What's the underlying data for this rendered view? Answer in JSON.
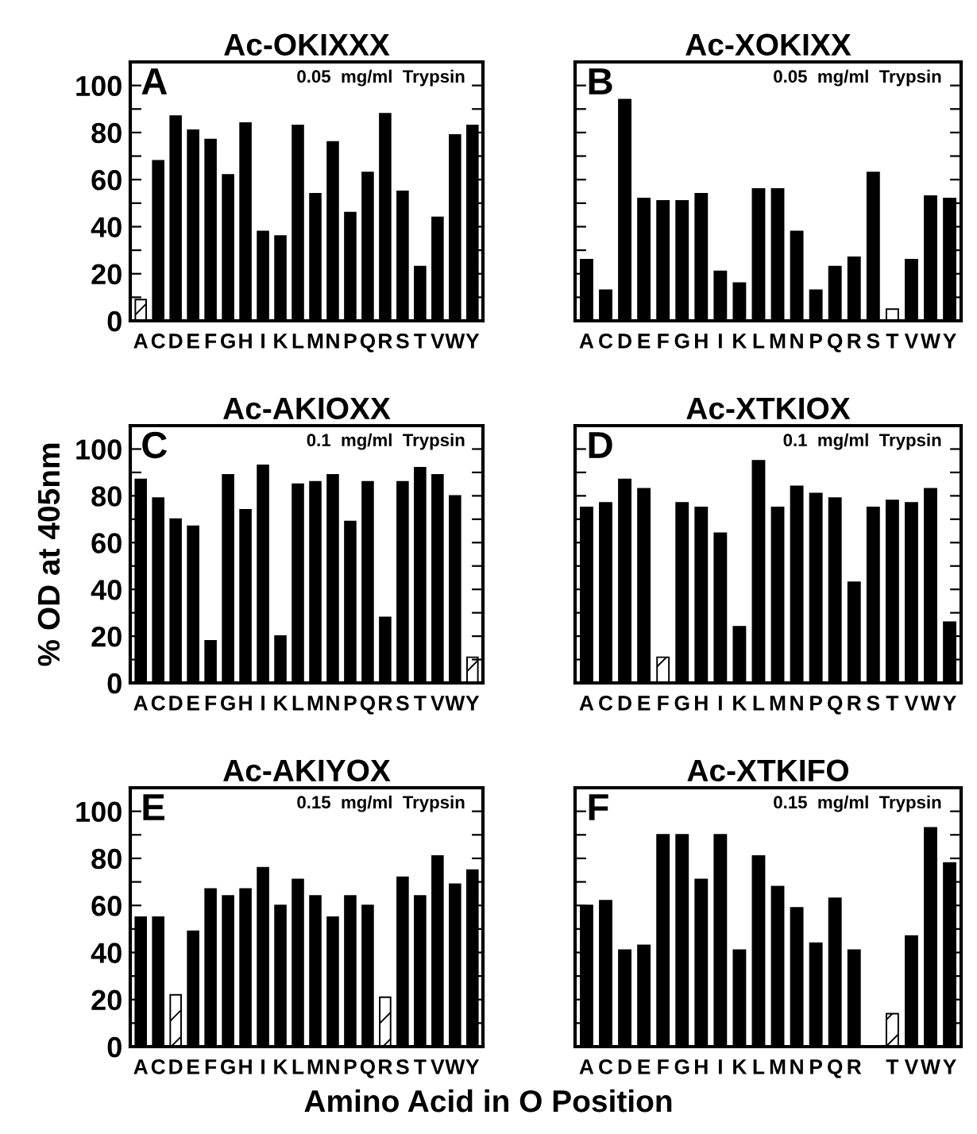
{
  "chart_data": [
    {
      "type": "bar",
      "title": "Ac-OKIXXX",
      "categories": [
        "A",
        "C",
        "D",
        "E",
        "F",
        "G",
        "H",
        "I",
        "K",
        "L",
        "M",
        "N",
        "P",
        "Q",
        "R",
        "S",
        "T",
        "V",
        "W",
        "Y"
      ],
      "annotations": [
        "A",
        "0.05  mg/ml  Trypsin"
      ],
      "ylim": [
        0,
        110
      ],
      "yticks": [
        0,
        {
          "value": 10,
          "label": null
        },
        20,
        {
          "value": 30,
          "label": null
        },
        40,
        {
          "value": 50,
          "label": null
        },
        60,
        {
          "value": 70,
          "label": null
        },
        80,
        {
          "value": 90,
          "label": null
        },
        100
      ],
      "grid": false,
      "series": [
        {
          "color": "#000000",
          "colors": [
            "#ffffff",
            "#000000",
            "#000000",
            "#000000",
            "#000000",
            "#000000",
            "#000000",
            "#000000",
            "#000000",
            "#000000",
            "#000000",
            "#000000",
            "#000000",
            "#000000",
            "#000000",
            "#000000",
            "#000000",
            "#000000",
            "#000000",
            "#000000"
          ],
          "values": [
            9,
            68,
            87,
            81,
            77,
            62,
            84,
            38,
            36,
            83,
            54,
            76,
            46,
            63,
            88,
            55,
            23,
            44,
            79,
            83
          ]
        }
      ]
    },
    {
      "type": "bar",
      "title": "Ac-XOKIXX",
      "categories": [
        "A",
        "C",
        "D",
        "E",
        "F",
        "G",
        "H",
        "I",
        "K",
        "L",
        "M",
        "N",
        "P",
        "Q",
        "R",
        "S",
        "T",
        "V",
        "W",
        "Y"
      ],
      "annotations": [
        "B",
        "0.05  mg/ml  Trypsin"
      ],
      "ylim": [
        0,
        110
      ],
      "yticks": [
        0,
        {
          "value": 10,
          "label": null
        },
        20,
        {
          "value": 30,
          "label": null
        },
        40,
        {
          "value": 50,
          "label": null
        },
        60,
        {
          "value": 70,
          "label": null
        },
        80,
        {
          "value": 90,
          "label": null
        },
        100
      ],
      "grid": false,
      "tick_labels": "x",
      "series": [
        {
          "color": "#000000",
          "colors": [
            "#000000",
            "#000000",
            "#000000",
            "#000000",
            "#000000",
            "#000000",
            "#000000",
            "#000000",
            "#000000",
            "#000000",
            "#000000",
            "#000000",
            "#000000",
            "#000000",
            "#000000",
            "#000000",
            "#ffffff",
            "#000000",
            "#000000",
            "#000000"
          ],
          "values": [
            26,
            13,
            94,
            52,
            51,
            51,
            54,
            21,
            16,
            56,
            56,
            38,
            13,
            23,
            27,
            63,
            5,
            26,
            53,
            52
          ]
        }
      ]
    },
    {
      "type": "bar",
      "title": "Ac-AKIOXX",
      "ylabel": "% OD at 405nm",
      "categories": [
        "A",
        "C",
        "D",
        "E",
        "F",
        "G",
        "H",
        "I",
        "K",
        "L",
        "M",
        "N",
        "P",
        "Q",
        "R",
        "S",
        "T",
        "V",
        "W",
        "Y"
      ],
      "annotations": [
        "C",
        "0.1  mg/ml  Trypsin"
      ],
      "ylim": [
        0,
        110
      ],
      "yticks": [
        0,
        {
          "value": 10,
          "label": null
        },
        20,
        {
          "value": 30,
          "label": null
        },
        40,
        {
          "value": 50,
          "label": null
        },
        60,
        {
          "value": 70,
          "label": null
        },
        80,
        {
          "value": 90,
          "label": null
        },
        100
      ],
      "grid": false,
      "series": [
        {
          "color": "#000000",
          "colors": [
            "#000000",
            "#000000",
            "#000000",
            "#000000",
            "#000000",
            "#000000",
            "#000000",
            "#000000",
            "#000000",
            "#000000",
            "#000000",
            "#000000",
            "#000000",
            "#000000",
            "#000000",
            "#000000",
            "#000000",
            "#000000",
            "#000000",
            "#ffffff"
          ],
          "values": [
            87,
            79,
            70,
            67,
            18,
            89,
            74,
            93,
            20,
            85,
            86,
            89,
            69,
            86,
            28,
            86,
            92,
            89,
            80,
            11
          ]
        }
      ]
    },
    {
      "type": "bar",
      "title": "Ac-XTKIOX",
      "categories": [
        "A",
        "C",
        "D",
        "E",
        "F",
        "G",
        "H",
        "I",
        "K",
        "L",
        "M",
        "N",
        "P",
        "Q",
        "R",
        "S",
        "T",
        "V",
        "W",
        "Y"
      ],
      "annotations": [
        "D",
        "0.1  mg/ml  Trypsin"
      ],
      "ylim": [
        0,
        110
      ],
      "yticks": [
        0,
        {
          "value": 10,
          "label": null
        },
        20,
        {
          "value": 30,
          "label": null
        },
        40,
        {
          "value": 50,
          "label": null
        },
        60,
        {
          "value": 70,
          "label": null
        },
        80,
        {
          "value": 90,
          "label": null
        },
        100
      ],
      "grid": false,
      "tick_labels": "x",
      "series": [
        {
          "color": "#000000",
          "colors": [
            "#000000",
            "#000000",
            "#000000",
            "#000000",
            "#ffffff",
            "#000000",
            "#000000",
            "#000000",
            "#000000",
            "#000000",
            "#000000",
            "#000000",
            "#000000",
            "#000000",
            "#000000",
            "#000000",
            "#000000",
            "#000000",
            "#000000",
            "#000000"
          ],
          "values": [
            75,
            77,
            87,
            83,
            11,
            77,
            75,
            64,
            24,
            95,
            75,
            84,
            81,
            79,
            43,
            75,
            78,
            77,
            83,
            26
          ]
        }
      ]
    },
    {
      "type": "bar",
      "title": "Ac-AKIYOX",
      "categories": [
        "A",
        "C",
        "D",
        "E",
        "F",
        "G",
        "H",
        "I",
        "K",
        "L",
        "M",
        "N",
        "P",
        "Q",
        "R",
        "S",
        "T",
        "V",
        "W",
        "Y"
      ],
      "annotations": [
        "E",
        "0.15  mg/ml  Trypsin"
      ],
      "ylim": [
        0,
        110
      ],
      "yticks": [
        0,
        {
          "value": 10,
          "label": null
        },
        20,
        {
          "value": 30,
          "label": null
        },
        40,
        {
          "value": 50,
          "label": null
        },
        60,
        {
          "value": 70,
          "label": null
        },
        80,
        {
          "value": 90,
          "label": null
        },
        100
      ],
      "grid": false,
      "series": [
        {
          "color": "#000000",
          "colors": [
            "#000000",
            "#000000",
            "#ffffff",
            "#000000",
            "#000000",
            "#000000",
            "#000000",
            "#000000",
            "#000000",
            "#000000",
            "#000000",
            "#000000",
            "#000000",
            "#000000",
            "#ffffff",
            "#000000",
            "#000000",
            "#000000",
            "#000000",
            "#000000"
          ],
          "values": [
            55,
            55,
            22,
            49,
            67,
            64,
            67,
            76,
            60,
            71,
            64,
            55,
            64,
            60,
            21,
            72,
            64,
            81,
            69,
            75
          ]
        }
      ]
    },
    {
      "type": "bar",
      "title": "Ac-XTKIFO",
      "xlabel": "Amino Acid in O Position",
      "categories": [
        "A",
        "C",
        "D",
        "E",
        "F",
        "G",
        "H",
        "I",
        "K",
        "L",
        "M",
        "N",
        "P",
        "Q",
        "R",
        null,
        "T",
        "V",
        "W",
        "Y"
      ],
      "annotations": [
        "F",
        "0.15  mg/ml  Trypsin"
      ],
      "ylim": [
        0,
        110
      ],
      "yticks": [
        0,
        {
          "value": 10,
          "label": null
        },
        20,
        {
          "value": 30,
          "label": null
        },
        40,
        {
          "value": 50,
          "label": null
        },
        60,
        {
          "value": 70,
          "label": null
        },
        80,
        {
          "value": 90,
          "label": null
        },
        100
      ],
      "grid": false,
      "tick_labels": "x",
      "series": [
        {
          "color": "#000000",
          "colors": [
            "#000000",
            "#000000",
            "#000000",
            "#000000",
            "#000000",
            "#000000",
            "#000000",
            "#000000",
            "#000000",
            "#000000",
            "#000000",
            "#000000",
            "#000000",
            "#000000",
            "#000000",
            "#000000",
            "#ffffff",
            "#000000",
            "#000000",
            "#000000"
          ],
          "values": [
            60,
            62,
            41,
            43,
            90,
            90,
            71,
            90,
            41,
            81,
            68,
            59,
            44,
            63,
            41,
            null,
            14,
            47,
            93,
            78
          ]
        }
      ]
    }
  ]
}
